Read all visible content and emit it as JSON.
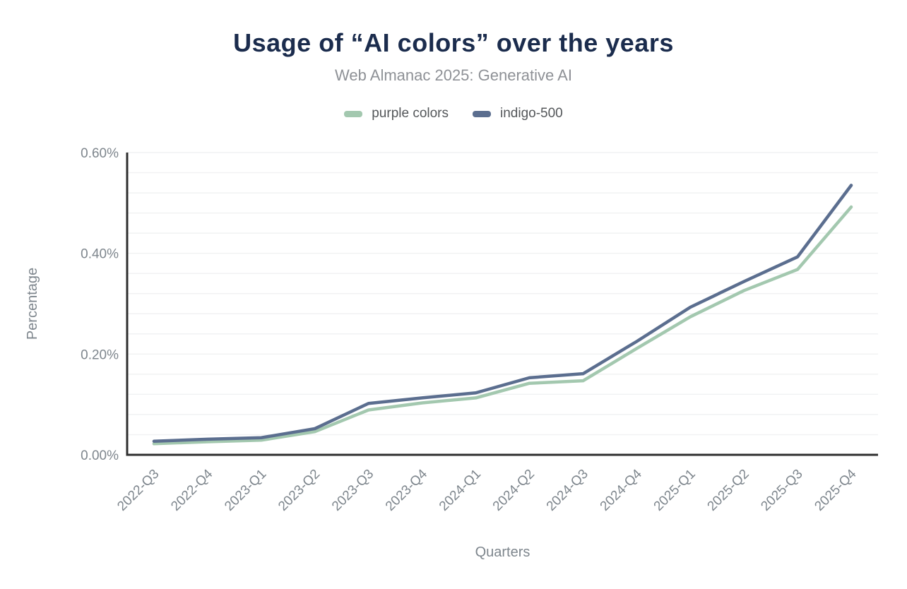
{
  "header": {
    "title": "Usage of “AI colors” over the years",
    "subtitle": "Web Almanac 2025: Generative AI"
  },
  "chart_data": {
    "type": "line",
    "title": "Usage of “AI colors” over the years",
    "subtitle": "Web Almanac 2025: Generative AI",
    "xlabel": "Quarters",
    "ylabel": "Percentage",
    "categories": [
      "2022-Q3",
      "2022-Q4",
      "2023-Q1",
      "2023-Q2",
      "2023-Q3",
      "2023-Q4",
      "2024-Q1",
      "2024-Q2",
      "2024-Q3",
      "2024-Q4",
      "2025-Q1",
      "2025-Q2",
      "2025-Q3",
      "2025-Q4"
    ],
    "series": [
      {
        "name": "purple colors",
        "color": "#a3c8af",
        "values": [
          0.022,
          0.026,
          0.029,
          0.046,
          0.089,
          0.103,
          0.113,
          0.142,
          0.147,
          0.211,
          0.274,
          0.326,
          0.368,
          0.492
        ]
      },
      {
        "name": "indigo-500",
        "color": "#5b6e8f",
        "values": [
          0.027,
          0.031,
          0.034,
          0.052,
          0.102,
          0.113,
          0.123,
          0.153,
          0.161,
          0.225,
          0.293,
          0.344,
          0.393,
          0.535
        ]
      }
    ],
    "ylim": [
      0,
      0.6
    ],
    "y_ticks": [
      {
        "value": 0.0,
        "label": "0.00%"
      },
      {
        "value": 0.2,
        "label": "0.20%"
      },
      {
        "value": 0.4,
        "label": "0.40%"
      },
      {
        "value": 0.6,
        "label": "0.60%"
      }
    ],
    "minor_grid_step": 0.04,
    "grid": "horizontal",
    "legend_position": "top",
    "x_tick_rotation": -45
  },
  "style": {
    "title_color": "#1b2c4d",
    "subtitle_color": "#8e9196",
    "axis_line_color": "#2f2f2f",
    "grid_color": "#f1f2f3",
    "tick_label_color": "#7e868d",
    "background": "#ffffff"
  }
}
